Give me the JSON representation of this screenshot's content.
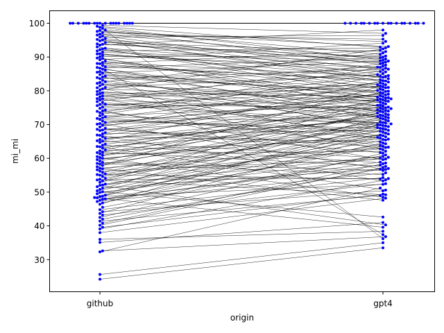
{
  "chart_data": {
    "type": "scatter",
    "subtype": "paired-swarm",
    "xlabel": "origin",
    "ylabel": "mi_mi",
    "categories": [
      "github",
      "gpt4"
    ],
    "y_ticks": [
      30,
      40,
      50,
      60,
      70,
      80,
      90,
      100
    ],
    "ylim": [
      20.5,
      103.7
    ],
    "marker_color": "#0000ff",
    "line_color": "#000000",
    "grid": false,
    "pairs": [
      [
        100,
        100
      ],
      [
        100,
        100
      ],
      [
        100,
        100
      ],
      [
        100,
        100
      ],
      [
        100,
        100
      ],
      [
        100,
        100
      ],
      [
        100,
        100
      ],
      [
        100,
        100
      ],
      [
        100,
        100
      ],
      [
        100,
        100
      ],
      [
        100,
        100
      ],
      [
        100,
        100
      ],
      [
        100,
        100
      ],
      [
        100,
        100
      ],
      [
        100,
        100
      ],
      [
        100,
        100
      ],
      [
        100,
        100
      ],
      [
        100,
        100
      ],
      [
        98.5,
        36.2
      ],
      [
        97.6,
        93.1
      ],
      [
        96.8,
        89.4
      ],
      [
        95.9,
        96.4
      ],
      [
        95.1,
        88.2
      ],
      [
        94.3,
        91.6
      ],
      [
        93.5,
        98.0
      ],
      [
        92.6,
        87.0
      ],
      [
        91.8,
        92.7
      ],
      [
        90.9,
        85.6
      ],
      [
        90.1,
        90.3
      ],
      [
        89.2,
        94.1
      ],
      [
        88.4,
        84.2
      ],
      [
        87.5,
        82.9
      ],
      [
        86.7,
        89.8
      ],
      [
        86.1,
        37.4
      ],
      [
        85.3,
        88.8
      ],
      [
        84.4,
        79.5
      ],
      [
        83.6,
        86.4
      ],
      [
        82.7,
        91.2
      ],
      [
        81.9,
        77.6
      ],
      [
        81.0,
        84.8
      ],
      [
        80.2,
        92.4
      ],
      [
        79.4,
        78.3
      ],
      [
        78.5,
        85.7
      ],
      [
        77.7,
        81.2
      ],
      [
        76.8,
        88.0
      ],
      [
        76.0,
        74.9
      ],
      [
        75.2,
        82.4
      ],
      [
        74.3,
        79.0
      ],
      [
        73.5,
        86.9
      ],
      [
        72.6,
        75.8
      ],
      [
        71.8,
        81.5
      ],
      [
        71.0,
        68.9
      ],
      [
        70.1,
        78.6
      ],
      [
        69.3,
        84.3
      ],
      [
        68.4,
        73.2
      ],
      [
        67.6,
        80.1
      ],
      [
        66.8,
        76.7
      ],
      [
        65.9,
        71.4
      ],
      [
        65.1,
        83.0
      ],
      [
        64.2,
        74.1
      ],
      [
        63.4,
        69.7
      ],
      [
        62.5,
        79.8
      ],
      [
        61.7,
        72.6
      ],
      [
        60.9,
        77.2
      ],
      [
        60.0,
        66.9
      ],
      [
        59.2,
        75.5
      ],
      [
        58.3,
        70.8
      ],
      [
        57.5,
        81.8
      ],
      [
        56.6,
        68.0
      ],
      [
        55.8,
        73.7
      ],
      [
        55.0,
        62.8
      ],
      [
        54.1,
        71.1
      ],
      [
        53.3,
        77.9
      ],
      [
        52.4,
        65.4
      ],
      [
        51.6,
        69.4
      ],
      [
        50.8,
        74.6
      ],
      [
        49.9,
        60.3
      ],
      [
        49.1,
        67.5
      ],
      [
        48.4,
        72.9
      ],
      [
        48.0,
        63.6
      ],
      [
        47.6,
        58.9
      ],
      [
        46.4,
        70.5
      ],
      [
        44.8,
        54.3
      ],
      [
        43.7,
        66.2
      ],
      [
        42.5,
        61.5
      ],
      [
        41.4,
        49.0
      ],
      [
        40.2,
        57.3
      ],
      [
        39.1,
        53.6
      ],
      [
        38.0,
        48.2
      ],
      [
        35.1,
        41.0
      ],
      [
        32.6,
        36.8
      ],
      [
        32.3,
        51.2
      ],
      [
        25.6,
        35.0
      ],
      [
        24.2,
        33.5
      ],
      [
        99.4,
        97.0
      ],
      [
        98.0,
        90.8
      ],
      [
        96.2,
        86.2
      ],
      [
        94.8,
        83.6
      ],
      [
        93.0,
        80.6
      ],
      [
        91.4,
        88.5
      ],
      [
        89.7,
        78.1
      ],
      [
        88.0,
        92.0
      ],
      [
        86.4,
        76.4
      ],
      [
        84.8,
        80.9
      ],
      [
        83.1,
        72.3
      ],
      [
        81.5,
        87.3
      ],
      [
        79.8,
        74.4
      ],
      [
        78.2,
        82.1
      ],
      [
        76.5,
        70.2
      ],
      [
        74.8,
        77.4
      ],
      [
        73.1,
        85.1
      ],
      [
        71.5,
        67.8
      ],
      [
        69.8,
        75.2
      ],
      [
        68.2,
        79.3
      ],
      [
        66.4,
        64.9
      ],
      [
        64.7,
        72.0
      ],
      [
        63.0,
        76.1
      ],
      [
        61.3,
        62.1
      ],
      [
        59.6,
        69.1
      ],
      [
        57.9,
        73.4
      ],
      [
        56.2,
        59.8
      ],
      [
        54.6,
        67.2
      ],
      [
        52.9,
        71.7
      ],
      [
        51.2,
        57.0
      ],
      [
        49.5,
        64.3
      ],
      [
        48.8,
        68.6
      ],
      [
        47.2,
        55.7
      ],
      [
        45.5,
        61.0
      ],
      [
        43.2,
        52.5
      ],
      [
        40.8,
        58.4
      ],
      [
        98.8,
        89.1
      ],
      [
        97.2,
        94.6
      ],
      [
        95.5,
        84.5
      ],
      [
        93.9,
        90.0
      ],
      [
        92.2,
        81.8
      ],
      [
        90.5,
        86.7
      ],
      [
        88.8,
        77.0
      ],
      [
        87.1,
        83.3
      ],
      [
        85.5,
        73.9
      ],
      [
        83.9,
        79.9
      ],
      [
        82.2,
        70.0
      ],
      [
        80.6,
        76.9
      ],
      [
        78.9,
        66.4
      ],
      [
        77.3,
        74.0
      ],
      [
        75.6,
        80.3
      ],
      [
        73.9,
        63.9
      ],
      [
        72.3,
        70.6
      ],
      [
        70.6,
        77.6
      ],
      [
        68.9,
        61.7
      ],
      [
        67.3,
        68.3
      ],
      [
        65.6,
        74.7
      ],
      [
        63.9,
        58.6
      ],
      [
        62.2,
        65.7
      ],
      [
        60.5,
        72.8
      ],
      [
        58.8,
        56.4
      ],
      [
        57.1,
        63.2
      ],
      [
        55.4,
        69.9
      ],
      [
        53.8,
        54.0
      ],
      [
        52.1,
        60.6
      ],
      [
        50.4,
        66.7
      ],
      [
        48.7,
        52.3
      ],
      [
        47.9,
        58.0
      ],
      [
        46.8,
        64.6
      ],
      [
        44.2,
        50.4
      ],
      [
        42.0,
        56.8
      ],
      [
        39.6,
        49.4
      ],
      [
        99.1,
        92.9
      ],
      [
        97.9,
        87.6
      ],
      [
        96.5,
        95.3
      ],
      [
        95.2,
        82.6
      ],
      [
        93.8,
        88.9
      ],
      [
        92.4,
        78.8
      ],
      [
        91.0,
        84.0
      ],
      [
        89.6,
        75.0
      ],
      [
        88.1,
        81.0
      ],
      [
        86.9,
        71.9
      ],
      [
        85.7,
        78.0
      ],
      [
        84.1,
        68.8
      ],
      [
        82.5,
        75.7
      ],
      [
        80.9,
        65.6
      ],
      [
        79.2,
        72.4
      ],
      [
        77.6,
        62.6
      ],
      [
        76.0,
        69.6
      ],
      [
        74.1,
        59.6
      ],
      [
        72.0,
        66.0
      ],
      [
        70.3,
        56.7
      ],
      [
        68.6,
        63.3
      ],
      [
        66.9,
        53.3
      ],
      [
        65.2,
        60.1
      ],
      [
        63.5,
        50.6
      ],
      [
        61.8,
        57.6
      ],
      [
        60.2,
        48.5
      ],
      [
        58.5,
        55.2
      ],
      [
        56.9,
        47.6
      ],
      [
        55.2,
        53.9
      ],
      [
        53.6,
        49.2
      ],
      [
        52.0,
        40.3
      ],
      [
        50.1,
        42.6
      ],
      [
        48.3,
        39.6
      ],
      [
        36.0,
        38.4
      ]
    ]
  }
}
